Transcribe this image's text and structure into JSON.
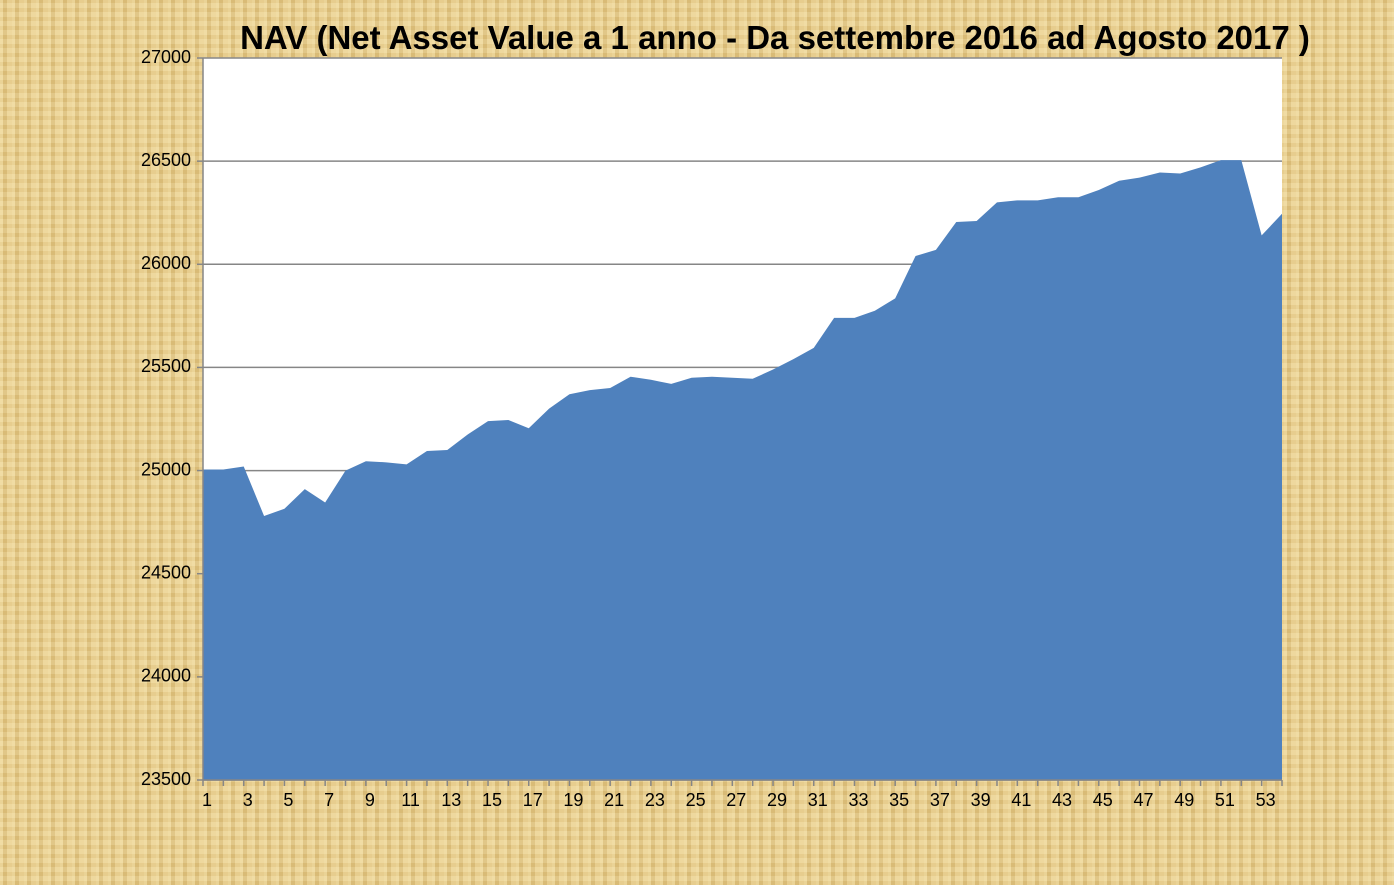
{
  "chart_data": {
    "type": "area",
    "title": "NAV (Net Asset Value a 1 anno - Da settembre 2016 ad Agosto 2017 )",
    "categories": [
      1,
      null,
      3,
      null,
      5,
      null,
      7,
      null,
      9,
      null,
      11,
      null,
      13,
      null,
      15,
      null,
      17,
      null,
      19,
      null,
      21,
      null,
      23,
      null,
      25,
      null,
      27,
      null,
      29,
      null,
      31,
      null,
      33,
      null,
      35,
      null,
      37,
      null,
      39,
      null,
      41,
      null,
      43,
      null,
      45,
      null,
      47,
      null,
      49,
      null,
      51,
      null,
      53,
      null
    ],
    "values": [
      25005,
      25005,
      25020,
      24780,
      24815,
      24910,
      24845,
      25000,
      25045,
      25040,
      25030,
      25095,
      25100,
      25175,
      25240,
      25245,
      25205,
      25300,
      25370,
      25390,
      25400,
      25455,
      25440,
      25420,
      25450,
      25455,
      25450,
      25445,
      25490,
      25540,
      25595,
      25740,
      25740,
      25775,
      25835,
      26040,
      26070,
      26205,
      26210,
      26300,
      26310,
      26310,
      26325,
      26325,
      26360,
      26405,
      26420,
      26445,
      26440,
      26470,
      26505,
      26505,
      26140,
      26245
    ],
    "color": "#4f81bd",
    "ylim": [
      23500,
      27000
    ],
    "yticks": [
      23500,
      24000,
      24500,
      25000,
      25500,
      26000,
      26500,
      27000
    ],
    "grid": true
  }
}
